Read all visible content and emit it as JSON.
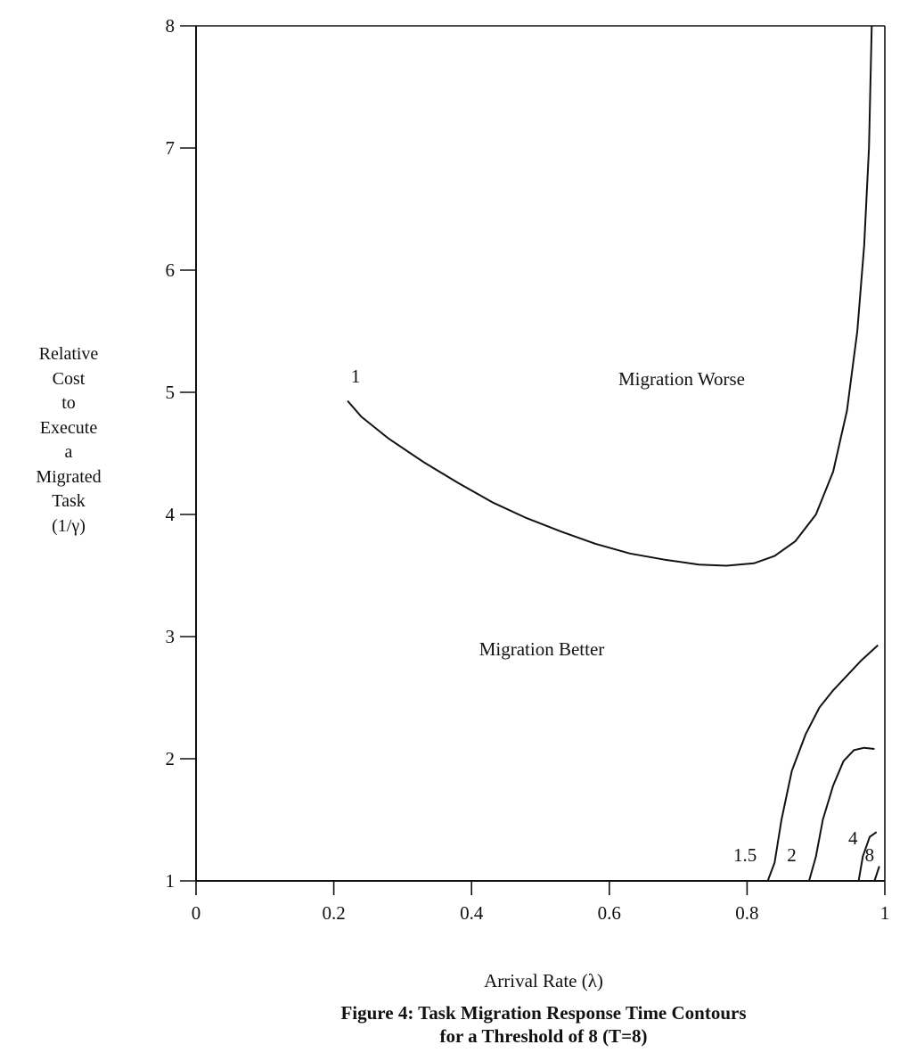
{
  "chart_data": {
    "type": "line",
    "title": "Figure 4: Task Migration Response Time Contours",
    "subtitle": "for a Threshold of 8 (T=8)",
    "xlabel": "Arrival Rate (λ)",
    "ylabel_lines": [
      "Relative",
      "Cost",
      "to",
      "Execute",
      "a",
      "Migrated",
      "Task",
      "(1/γ)"
    ],
    "xlim": [
      0,
      1
    ],
    "ylim": [
      1,
      8
    ],
    "x_ticks": [
      "0",
      "0.2",
      "0.4",
      "0.6",
      "0.8",
      "1"
    ],
    "y_ticks": [
      "1",
      "2",
      "3",
      "4",
      "5",
      "6",
      "7",
      "8"
    ],
    "grid": false,
    "annotations": [
      "Migration Worse",
      "Migration Better"
    ],
    "series": [
      {
        "name": "1",
        "points": [
          [
            0.22,
            4.93
          ],
          [
            0.24,
            4.8
          ],
          [
            0.28,
            4.62
          ],
          [
            0.33,
            4.43
          ],
          [
            0.38,
            4.26
          ],
          [
            0.43,
            4.1
          ],
          [
            0.48,
            3.97
          ],
          [
            0.53,
            3.86
          ],
          [
            0.58,
            3.76
          ],
          [
            0.63,
            3.68
          ],
          [
            0.68,
            3.63
          ],
          [
            0.73,
            3.59
          ],
          [
            0.77,
            3.58
          ],
          [
            0.81,
            3.6
          ],
          [
            0.84,
            3.66
          ],
          [
            0.87,
            3.78
          ],
          [
            0.9,
            4.0
          ],
          [
            0.925,
            4.35
          ],
          [
            0.945,
            4.85
          ],
          [
            0.96,
            5.5
          ],
          [
            0.97,
            6.2
          ],
          [
            0.977,
            7.0
          ],
          [
            0.981,
            8.0
          ]
        ]
      },
      {
        "name": "1.5",
        "points": [
          [
            0.83,
            1.0
          ],
          [
            0.84,
            1.15
          ],
          [
            0.85,
            1.5
          ],
          [
            0.865,
            1.9
          ],
          [
            0.885,
            2.2
          ],
          [
            0.905,
            2.42
          ],
          [
            0.925,
            2.56
          ],
          [
            0.945,
            2.68
          ],
          [
            0.965,
            2.8
          ],
          [
            0.99,
            2.93
          ]
        ]
      },
      {
        "name": "2",
        "points": [
          [
            0.89,
            1.0
          ],
          [
            0.9,
            1.2
          ],
          [
            0.91,
            1.5
          ],
          [
            0.925,
            1.78
          ],
          [
            0.94,
            1.98
          ],
          [
            0.955,
            2.07
          ],
          [
            0.97,
            2.09
          ],
          [
            0.985,
            2.08
          ]
        ]
      },
      {
        "name": "4",
        "points": [
          [
            0.962,
            1.0
          ],
          [
            0.968,
            1.2
          ],
          [
            0.978,
            1.36
          ],
          [
            0.988,
            1.4
          ]
        ]
      },
      {
        "name": "8",
        "points": [
          [
            0.985,
            1.0
          ],
          [
            0.992,
            1.12
          ]
        ]
      }
    ],
    "curve_labels": [
      {
        "text": "1",
        "x": 0.225,
        "y": 5.08
      },
      {
        "text": "1.5",
        "x": 0.78,
        "y": 1.16
      },
      {
        "text": "2",
        "x": 0.858,
        "y": 1.16
      },
      {
        "text": "4",
        "x": 0.947,
        "y": 1.3
      },
      {
        "text": "8",
        "x": 0.971,
        "y": 1.16
      }
    ]
  }
}
